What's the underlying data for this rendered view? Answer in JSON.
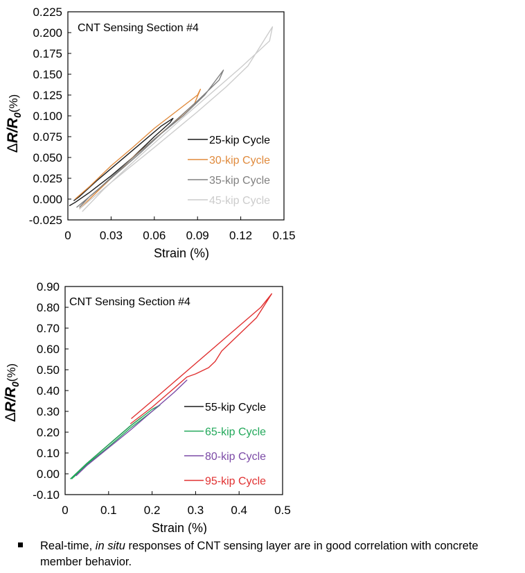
{
  "chart_data": [
    {
      "type": "line",
      "title": "CNT Sensing Section #4",
      "xlabel": "Strain (%)",
      "ylabel": {
        "delta": "Δ",
        "r": "R",
        "slash": "/",
        "r0": "R",
        "sub0": "0",
        "unit": "(%)"
      },
      "xlim": [
        0,
        0.15
      ],
      "ylim": [
        -0.025,
        0.225
      ],
      "xticks": [
        0,
        0.03,
        0.06,
        0.09,
        0.12,
        0.15
      ],
      "xtick_labels": [
        "0",
        "0.03",
        "0.06",
        "0.09",
        "0.12",
        "0.15"
      ],
      "yticks": [
        -0.025,
        0,
        0.025,
        0.05,
        0.075,
        0.1,
        0.125,
        0.15,
        0.175,
        0.2,
        0.225
      ],
      "ytick_labels": [
        "-0.025",
        "0.000",
        "0.025",
        "0.050",
        "0.075",
        "0.100",
        "0.125",
        "0.150",
        "0.175",
        "0.200",
        "0.225"
      ],
      "grid": false,
      "legend_position": "lower-right",
      "series": [
        {
          "name": "25-kip Cycle",
          "color": "#1a1a1a",
          "x": [
            0.001,
            0.005,
            0.015,
            0.03,
            0.045,
            0.06,
            0.071,
            0.073,
            0.065,
            0.05,
            0.035,
            0.02,
            0.008,
            0.004
          ],
          "y": [
            -0.008,
            -0.004,
            0.008,
            0.028,
            0.05,
            0.075,
            0.092,
            0.097,
            0.088,
            0.066,
            0.044,
            0.022,
            0.003,
            -0.002
          ]
        },
        {
          "name": "30-kip Cycle",
          "color": "#e08a3c",
          "x": [
            0.005,
            0.015,
            0.03,
            0.045,
            0.06,
            0.075,
            0.09,
            0.092,
            0.088,
            0.075,
            0.06,
            0.045,
            0.03,
            0.015,
            0.008
          ],
          "y": [
            0.0,
            0.015,
            0.04,
            0.062,
            0.085,
            0.105,
            0.125,
            0.132,
            0.115,
            0.094,
            0.072,
            0.05,
            0.025,
            0.0,
            -0.012
          ]
        },
        {
          "name": "35-kip Cycle",
          "color": "#808080",
          "x": [
            0.006,
            0.02,
            0.04,
            0.06,
            0.08,
            0.095,
            0.108,
            0.105,
            0.09,
            0.07,
            0.05,
            0.03,
            0.015,
            0.008
          ],
          "y": [
            -0.01,
            0.01,
            0.042,
            0.072,
            0.1,
            0.125,
            0.155,
            0.143,
            0.118,
            0.087,
            0.055,
            0.025,
            0.003,
            -0.01
          ]
        },
        {
          "name": "45-kip Cycle",
          "color": "#cccccc",
          "x": [
            0.008,
            0.03,
            0.06,
            0.09,
            0.11,
            0.125,
            0.142,
            0.14,
            0.12,
            0.1,
            0.08,
            0.05,
            0.025,
            0.01
          ],
          "y": [
            -0.012,
            0.02,
            0.062,
            0.105,
            0.135,
            0.16,
            0.207,
            0.19,
            0.158,
            0.128,
            0.098,
            0.052,
            0.012,
            -0.015
          ]
        }
      ]
    },
    {
      "type": "line",
      "title": "CNT Sensing Section #4",
      "xlabel": "Strain (%)",
      "ylabel": {
        "delta": "Δ",
        "r": "R",
        "slash": "/",
        "r0": "R",
        "sub0": "0",
        "unit": "(%)"
      },
      "xlim": [
        0,
        0.5
      ],
      "ylim": [
        -0.1,
        0.9
      ],
      "xticks": [
        0,
        0.1,
        0.2,
        0.3,
        0.4,
        0.5
      ],
      "xtick_labels": [
        "0",
        "0.1",
        "0.2",
        "0.3",
        "0.4",
        "0.5"
      ],
      "yticks": [
        -0.1,
        0,
        0.1,
        0.2,
        0.3,
        0.4,
        0.5,
        0.6,
        0.7,
        0.8,
        0.9
      ],
      "ytick_labels": [
        "-0.10",
        "0.00",
        "0.10",
        "0.20",
        "0.30",
        "0.40",
        "0.50",
        "0.60",
        "0.70",
        "0.80",
        "0.90"
      ],
      "grid": false,
      "legend_position": "lower-right",
      "series": [
        {
          "name": "55-kip Cycle",
          "color": "#1a1a1a",
          "x": [
            0.015,
            0.05,
            0.1,
            0.15,
            0.175,
            0.15,
            0.1,
            0.05,
            0.02
          ],
          "y": [
            -0.02,
            0.05,
            0.14,
            0.23,
            0.27,
            0.23,
            0.14,
            0.05,
            -0.015
          ]
        },
        {
          "name": "65-kip Cycle",
          "color": "#22a85a",
          "x": [
            0.012,
            0.05,
            0.1,
            0.15,
            0.2,
            0.218,
            0.2,
            0.15,
            0.1,
            0.05,
            0.015
          ],
          "y": [
            -0.025,
            0.05,
            0.14,
            0.23,
            0.31,
            0.33,
            0.3,
            0.22,
            0.13,
            0.045,
            -0.025
          ]
        },
        {
          "name": "80-kip Cycle",
          "color": "#7b4aa6",
          "x": [
            0.025,
            0.05,
            0.1,
            0.15,
            0.2,
            0.25,
            0.28,
            0.25,
            0.2,
            0.15,
            0.1,
            0.05,
            0.025
          ],
          "y": [
            -0.01,
            0.04,
            0.125,
            0.21,
            0.3,
            0.39,
            0.45,
            0.39,
            0.3,
            0.21,
            0.125,
            0.04,
            -0.01
          ]
        },
        {
          "name": "95-kip Cycle",
          "color": "#e03030",
          "x": [
            0.15,
            0.2,
            0.25,
            0.28,
            0.3,
            0.33,
            0.345,
            0.36,
            0.4,
            0.44,
            0.475,
            0.45,
            0.4,
            0.35,
            0.3,
            0.25,
            0.2,
            0.152
          ],
          "y": [
            0.24,
            0.32,
            0.41,
            0.465,
            0.48,
            0.51,
            0.54,
            0.59,
            0.67,
            0.75,
            0.865,
            0.8,
            0.71,
            0.62,
            0.53,
            0.44,
            0.35,
            0.265
          ]
        }
      ]
    }
  ],
  "caption": {
    "plain1": "Real-time, ",
    "italic": "in situ",
    "plain2": " responses of CNT sensing layer are in good correlation with concrete member behavior."
  }
}
